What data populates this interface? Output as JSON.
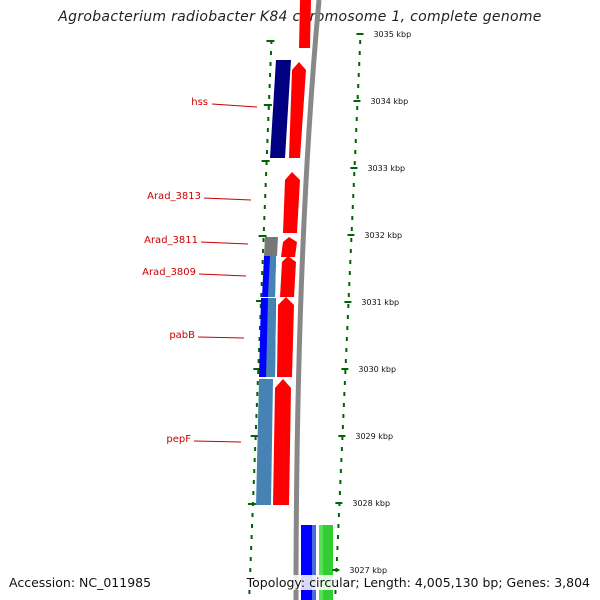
{
  "title": "Agrobacterium radiobacter K84 chromosome 1, complete genome",
  "footer": {
    "accession": "Accession: NC_011985",
    "summary": "Topology: circular; Length: 4,005,130 bp; Genes: 3,804"
  },
  "colors": {
    "forward_gene": "#ff0000",
    "cds_navy": "#000080",
    "cds_blue": "#0000ff",
    "cds_steel": "#4682b4",
    "cds_gray": "#777777",
    "cds_green": "#33cc33",
    "tick": "#006400",
    "label": "#cc0000",
    "backbone": "#888888"
  },
  "chart_data": {
    "type": "genome-map",
    "title": "Agrobacterium radiobacter K84 chromosome 1, complete genome",
    "scale_unit": "kbp",
    "scale_labels": [
      "3035 kbp",
      "3034 kbp",
      "3033 kbp",
      "3032 kbp",
      "3031 kbp",
      "3030 kbp",
      "3029 kbp",
      "3028 kbp",
      "3027 kbp"
    ],
    "gene_labels": [
      "hss",
      "Arad_3813",
      "Arad_3811",
      "Arad_3809",
      "pabB",
      "pepF"
    ]
  }
}
